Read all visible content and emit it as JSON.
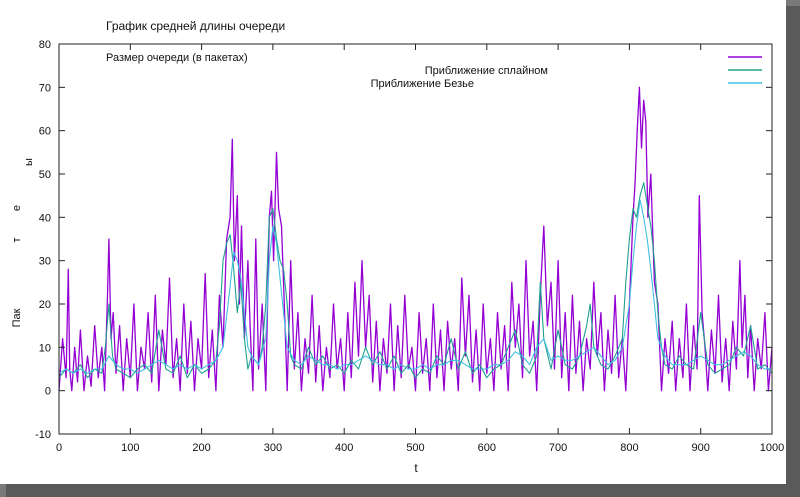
{
  "chart_data": {
    "type": "line",
    "title": "График средней длины очереди",
    "xlabel": "t",
    "ylabel_letters": [
      "Пак",
      "т",
      "е",
      "ы"
    ],
    "xlim": [
      0,
      1000
    ],
    "ylim": [
      -10,
      80
    ],
    "xticks": [
      0,
      100,
      200,
      300,
      400,
      500,
      600,
      700,
      800,
      900,
      1000
    ],
    "yticks": [
      -10,
      0,
      10,
      20,
      30,
      40,
      50,
      60,
      70,
      80
    ],
    "grid": false,
    "legend_position": "top-right",
    "series": [
      {
        "name": "Размер очереди (в пакетах)",
        "color": "#9400d3",
        "x": [
          0,
          5,
          10,
          13,
          15,
          18,
          22,
          26,
          30,
          35,
          40,
          45,
          50,
          55,
          60,
          64,
          68,
          70,
          73,
          76,
          80,
          85,
          90,
          95,
          100,
          105,
          110,
          115,
          120,
          125,
          130,
          135,
          140,
          145,
          150,
          155,
          160,
          165,
          170,
          175,
          180,
          185,
          190,
          195,
          200,
          205,
          210,
          215,
          220,
          225,
          230,
          235,
          240,
          243,
          246,
          250,
          253,
          256,
          260,
          265,
          268,
          272,
          276,
          280,
          285,
          290,
          295,
          298,
          301,
          305,
          308,
          312,
          316,
          320,
          325,
          330,
          335,
          340,
          345,
          350,
          355,
          360,
          365,
          370,
          375,
          380,
          385,
          390,
          395,
          400,
          405,
          410,
          415,
          420,
          425,
          430,
          435,
          440,
          445,
          450,
          455,
          460,
          465,
          470,
          475,
          480,
          485,
          490,
          495,
          500,
          505,
          510,
          515,
          520,
          525,
          530,
          535,
          540,
          545,
          550,
          555,
          560,
          565,
          570,
          575,
          580,
          585,
          590,
          595,
          600,
          605,
          610,
          615,
          620,
          625,
          630,
          635,
          640,
          645,
          650,
          655,
          660,
          665,
          670,
          675,
          680,
          685,
          690,
          695,
          700,
          705,
          710,
          715,
          720,
          725,
          730,
          735,
          740,
          745,
          750,
          755,
          760,
          765,
          770,
          775,
          780,
          785,
          790,
          795,
          800,
          805,
          808,
          811,
          814,
          817,
          820,
          823,
          826,
          830,
          835,
          840,
          845,
          850,
          855,
          860,
          865,
          870,
          875,
          880,
          885,
          890,
          895,
          898,
          902,
          906,
          910,
          915,
          920,
          925,
          930,
          935,
          940,
          945,
          950,
          955,
          958,
          962,
          966,
          970,
          975,
          980,
          985,
          990,
          995,
          1000
        ],
        "y": [
          0,
          12,
          3,
          28,
          5,
          0,
          10,
          2,
          14,
          0,
          8,
          1,
          15,
          3,
          10,
          0,
          22,
          35,
          12,
          18,
          4,
          15,
          0,
          12,
          3,
          20,
          0,
          10,
          5,
          18,
          2,
          22,
          0,
          14,
          6,
          26,
          3,
          12,
          0,
          20,
          4,
          16,
          0,
          12,
          5,
          27,
          3,
          14,
          0,
          22,
          10,
          35,
          40,
          58,
          30,
          45,
          20,
          38,
          12,
          30,
          15,
          0,
          35,
          5,
          20,
          0,
          40,
          46,
          30,
          55,
          42,
          38,
          20,
          0,
          30,
          5,
          18,
          0,
          12,
          4,
          22,
          2,
          15,
          0,
          10,
          3,
          20,
          5,
          12,
          0,
          18,
          3,
          25,
          8,
          30,
          10,
          22,
          2,
          16,
          0,
          12,
          4,
          20,
          0,
          15,
          3,
          22,
          5,
          10,
          0,
          18,
          4,
          12,
          0,
          20,
          3,
          14,
          0,
          16,
          5,
          12,
          0,
          26,
          8,
          22,
          2,
          14,
          0,
          20,
          4,
          12,
          0,
          18,
          5,
          15,
          0,
          25,
          10,
          20,
          3,
          30,
          8,
          16,
          0,
          22,
          38,
          15,
          25,
          5,
          30,
          3,
          18,
          0,
          22,
          4,
          16,
          0,
          12,
          5,
          25,
          8,
          18,
          0,
          14,
          4,
          22,
          3,
          12,
          0,
          20,
          40,
          48,
          60,
          70,
          56,
          67,
          62,
          40,
          50,
          25,
          20,
          0,
          12,
          4,
          16,
          0,
          12,
          3,
          20,
          0,
          15,
          5,
          45,
          18,
          10,
          0,
          14,
          4,
          22,
          2,
          12,
          0,
          16,
          5,
          30,
          10,
          22,
          3,
          15,
          0,
          12,
          5,
          18,
          0,
          10
        ]
      },
      {
        "name": "Приближение сплайном",
        "color": "#20a090",
        "x": [
          0,
          10,
          20,
          30,
          40,
          50,
          60,
          65,
          70,
          75,
          80,
          90,
          100,
          110,
          120,
          130,
          140,
          150,
          160,
          170,
          180,
          190,
          200,
          210,
          220,
          225,
          230,
          235,
          240,
          245,
          250,
          255,
          260,
          265,
          270,
          280,
          285,
          290,
          295,
          300,
          305,
          310,
          315,
          320,
          325,
          330,
          340,
          350,
          360,
          370,
          380,
          390,
          400,
          410,
          420,
          430,
          440,
          450,
          460,
          470,
          480,
          490,
          500,
          510,
          520,
          530,
          540,
          550,
          560,
          570,
          580,
          590,
          600,
          610,
          620,
          630,
          640,
          650,
          660,
          670,
          675,
          680,
          690,
          700,
          710,
          720,
          730,
          740,
          745,
          750,
          760,
          770,
          780,
          790,
          795,
          800,
          805,
          810,
          815,
          820,
          825,
          830,
          835,
          840,
          845,
          850,
          860,
          870,
          880,
          890,
          900,
          910,
          920,
          930,
          940,
          950,
          960,
          970,
          980,
          990,
          1000
        ],
        "y": [
          3,
          5,
          4,
          6,
          3,
          5,
          4,
          10,
          20,
          8,
          5,
          4,
          3,
          5,
          6,
          4,
          14,
          5,
          4,
          8,
          3,
          6,
          4,
          5,
          7,
          15,
          30,
          34,
          36,
          28,
          18,
          25,
          12,
          5,
          8,
          6,
          10,
          20,
          40,
          42,
          35,
          30,
          28,
          20,
          8,
          6,
          5,
          10,
          6,
          8,
          5,
          6,
          4,
          7,
          5,
          10,
          6,
          9,
          5,
          8,
          4,
          6,
          3,
          5,
          4,
          8,
          6,
          12,
          5,
          9,
          4,
          6,
          3,
          5,
          6,
          10,
          14,
          6,
          4,
          8,
          25,
          12,
          5,
          14,
          6,
          5,
          8,
          15,
          20,
          10,
          6,
          5,
          8,
          12,
          25,
          35,
          42,
          40,
          45,
          48,
          43,
          38,
          30,
          18,
          10,
          6,
          5,
          8,
          6,
          5,
          18,
          6,
          4,
          5,
          6,
          10,
          8,
          15,
          5,
          6,
          4
        ]
      },
      {
        "name": "Приближение Безье",
        "color": "#40c0e0",
        "x": [
          0,
          10,
          20,
          30,
          40,
          50,
          60,
          70,
          80,
          90,
          100,
          110,
          120,
          130,
          140,
          150,
          160,
          170,
          180,
          190,
          200,
          210,
          220,
          230,
          240,
          245,
          250,
          255,
          260,
          265,
          270,
          280,
          290,
          295,
          300,
          305,
          310,
          320,
          330,
          340,
          350,
          360,
          370,
          380,
          390,
          400,
          410,
          420,
          430,
          440,
          450,
          460,
          470,
          480,
          490,
          500,
          510,
          520,
          530,
          540,
          550,
          560,
          570,
          580,
          590,
          600,
          610,
          620,
          630,
          640,
          650,
          660,
          670,
          680,
          690,
          700,
          710,
          720,
          730,
          740,
          750,
          760,
          770,
          780,
          790,
          800,
          805,
          810,
          815,
          820,
          825,
          830,
          840,
          850,
          860,
          870,
          880,
          890,
          900,
          910,
          920,
          930,
          940,
          950,
          960,
          970,
          980,
          990,
          1000
        ],
        "y": [
          4,
          5,
          4,
          5,
          4,
          5,
          5,
          8,
          6,
          5,
          5,
          4,
          5,
          6,
          7,
          6,
          5,
          6,
          5,
          6,
          5,
          6,
          7,
          10,
          24,
          32,
          30,
          26,
          18,
          10,
          8,
          6,
          12,
          30,
          38,
          34,
          26,
          10,
          7,
          6,
          8,
          7,
          6,
          6,
          5,
          6,
          6,
          7,
          8,
          7,
          6,
          6,
          5,
          6,
          5,
          5,
          6,
          5,
          6,
          6,
          7,
          7,
          6,
          5,
          5,
          5,
          6,
          6,
          7,
          9,
          8,
          6,
          10,
          12,
          7,
          8,
          7,
          7,
          8,
          9,
          10,
          8,
          6,
          7,
          10,
          20,
          30,
          38,
          44,
          40,
          35,
          28,
          12,
          8,
          6,
          6,
          6,
          7,
          8,
          7,
          6,
          6,
          7,
          8,
          9,
          8,
          6,
          5,
          5
        ]
      }
    ]
  }
}
